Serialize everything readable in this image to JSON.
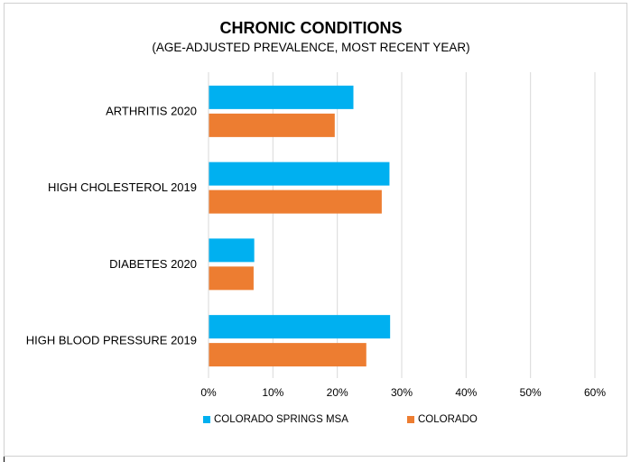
{
  "chart_data": {
    "type": "bar",
    "orientation": "horizontal",
    "title": "CHRONIC CONDITIONS",
    "subtitle": "(AGE-ADJUSTED PREVALENCE, MOST RECENT YEAR)",
    "categories": [
      "ARTHRITIS 2020",
      "HIGH CHOLESTEROL 2019",
      "DIABETES 2020",
      "HIGH BLOOD PRESSURE 2019"
    ],
    "series": [
      {
        "name": "COLORADO SPRINGS MSA",
        "color": "#00b0f0",
        "values": [
          22.5,
          28.1,
          7.1,
          28.2
        ]
      },
      {
        "name": "COLORADO",
        "color": "#ed7d31",
        "values": [
          19.6,
          26.9,
          7.0,
          24.5
        ]
      }
    ],
    "xlim": [
      0,
      60
    ],
    "xticks": [
      "0%",
      "10%",
      "20%",
      "30%",
      "40%",
      "50%",
      "60%"
    ],
    "xtick_values": [
      0,
      10,
      20,
      30,
      40,
      50,
      60
    ],
    "grid": true,
    "gridline_color": "#d9d9d9",
    "legend_position": "bottom"
  }
}
